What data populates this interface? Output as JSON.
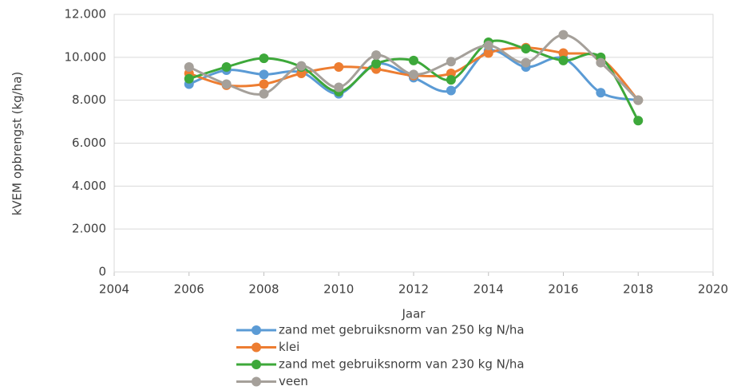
{
  "chart_data": {
    "type": "scatter-smooth",
    "x_label": "Jaar",
    "y_label": "kVEM opbrengst (kg/ha)",
    "x": [
      2006,
      2007,
      2008,
      2009,
      2010,
      2011,
      2012,
      2013,
      2014,
      2015,
      2016,
      2017,
      2018
    ],
    "series": [
      {
        "name": "zand met gebruiksnorm van 250 kg N/ha",
        "color": "#5b9bd5",
        "values": [
          8750,
          9400,
          9200,
          9300,
          8300,
          9700,
          9050,
          8450,
          10300,
          9550,
          9950,
          8350,
          8000
        ]
      },
      {
        "name": "klei",
        "color": "#ed7d31",
        "values": [
          9250,
          8700,
          8750,
          9250,
          9550,
          9450,
          9150,
          9250,
          10200,
          10450,
          10200,
          9950,
          8000
        ]
      },
      {
        "name": "zand met gebruiksnorm van 230 kg N/ha",
        "color": "#3da83a",
        "values": [
          9000,
          9550,
          9950,
          9550,
          8400,
          9700,
          9850,
          8950,
          10700,
          10400,
          9850,
          10000,
          7050
        ]
      },
      {
        "name": "veen",
        "color": "#a5a09a",
        "values": [
          9550,
          8750,
          8300,
          9600,
          8600,
          10100,
          9200,
          9800,
          10550,
          9750,
          11050,
          9750,
          8000
        ]
      }
    ],
    "xlim": [
      2004,
      2020
    ],
    "xticks": [
      2004,
      2006,
      2008,
      2010,
      2012,
      2014,
      2016,
      2018,
      2020
    ],
    "ylim": [
      0,
      12000
    ],
    "yticks": [
      0,
      {
        "value": 2000,
        "label": "2.000"
      },
      {
        "value": 4000,
        "label": "4.000"
      },
      {
        "value": 6000,
        "label": "6.000"
      },
      {
        "value": 8000,
        "label": "8.000"
      },
      {
        "value": 10000,
        "label": "10.000"
      },
      {
        "value": 12000,
        "label": "12.000"
      }
    ],
    "grid": true,
    "legend": "bottom"
  }
}
